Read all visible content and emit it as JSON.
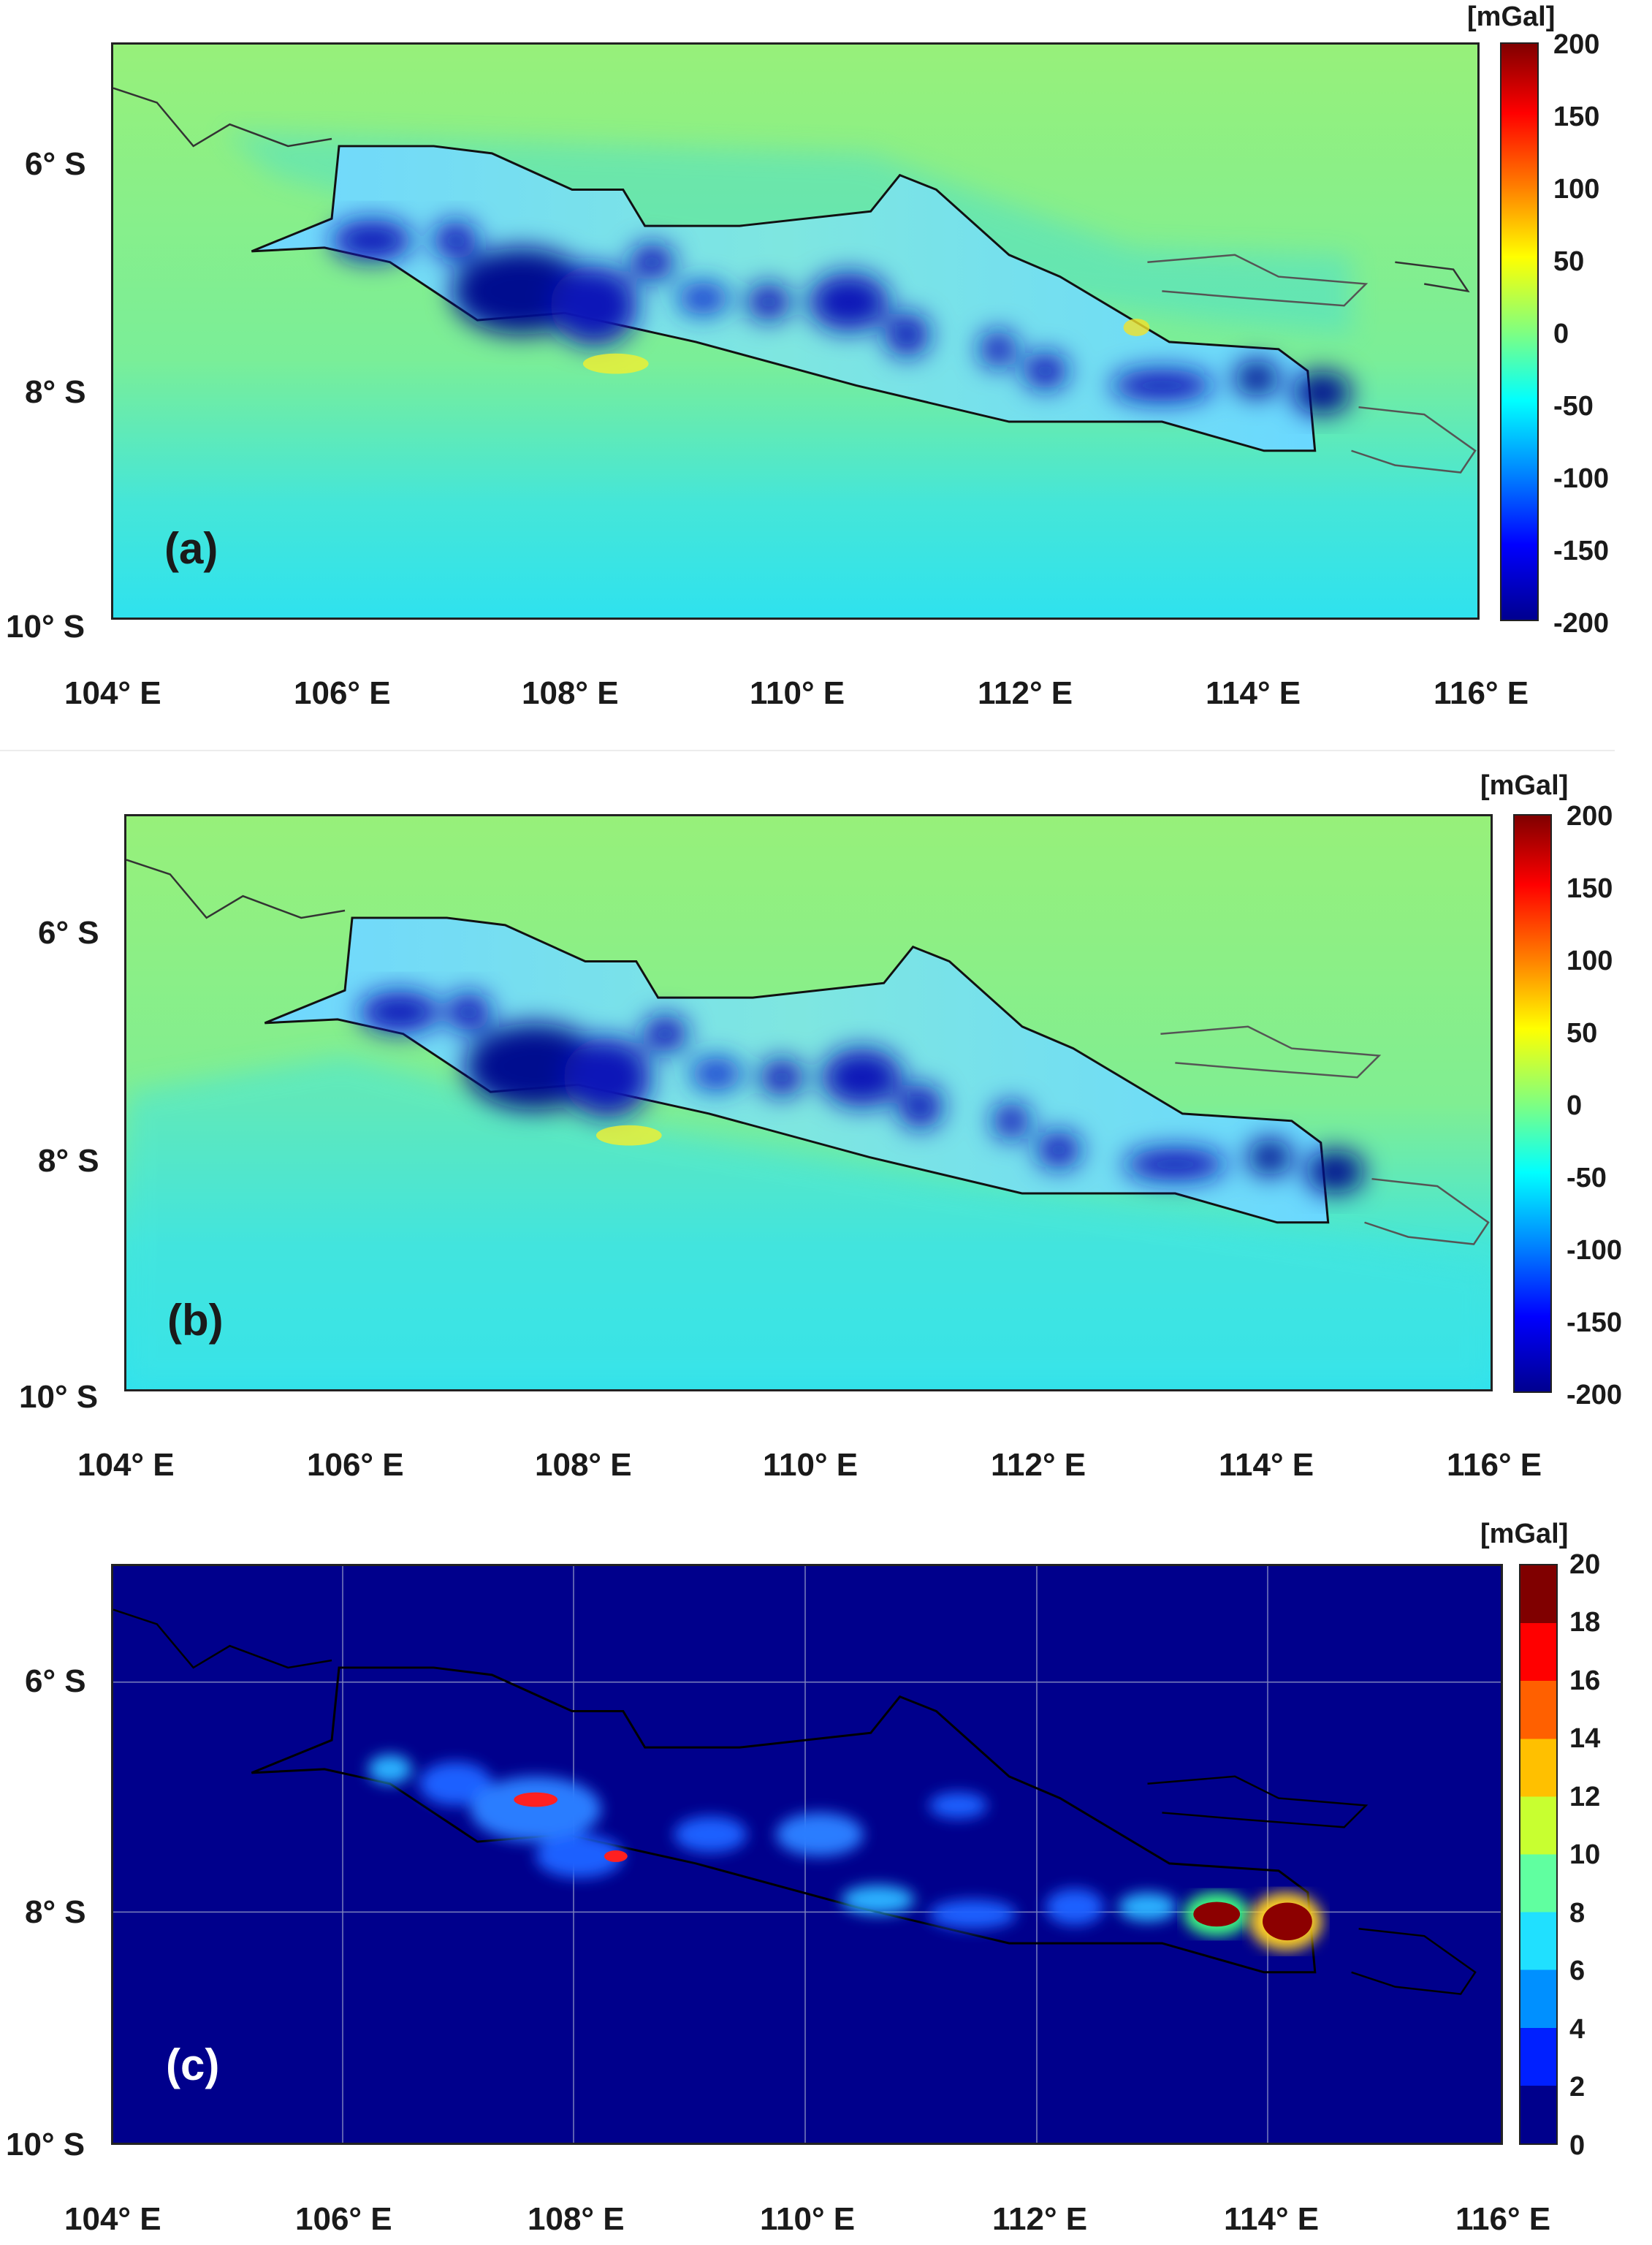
{
  "x_labels": [
    "104° E",
    "106° E",
    "108° E",
    "110° E",
    "112° E",
    "114° E",
    "116° E"
  ],
  "y_labels": [
    "6° S",
    "8° S",
    "10° S"
  ],
  "panels": {
    "a": {
      "label": "(a)",
      "unit": "[mGal]",
      "ticks": [
        "200",
        "150",
        "100",
        "50",
        "0",
        "-50",
        "-100",
        "-150",
        "-200"
      ],
      "colormap": "jet",
      "range": [
        -200,
        200
      ]
    },
    "b": {
      "label": "(b)",
      "unit": "[mGal]",
      "ticks": [
        "200",
        "150",
        "100",
        "50",
        "0",
        "-50",
        "-100",
        "-150",
        "-200"
      ],
      "colormap": "jet",
      "range": [
        -200,
        200
      ]
    },
    "c": {
      "label": "(c)",
      "unit": "[mGal]",
      "ticks": [
        "20",
        "18",
        "16",
        "14",
        "12",
        "10",
        "8",
        "6",
        "4",
        "2",
        "0"
      ],
      "colormap": "jet-discrete",
      "range": [
        0,
        20
      ],
      "grid": true
    }
  },
  "colors": {
    "sea_green": "#8ff07a",
    "southern_cyan": "#3fe8e8",
    "low_blue": "#0a0a9a",
    "panel_c_bg": "#00008c",
    "hotspot_red": "#8c0000"
  }
}
